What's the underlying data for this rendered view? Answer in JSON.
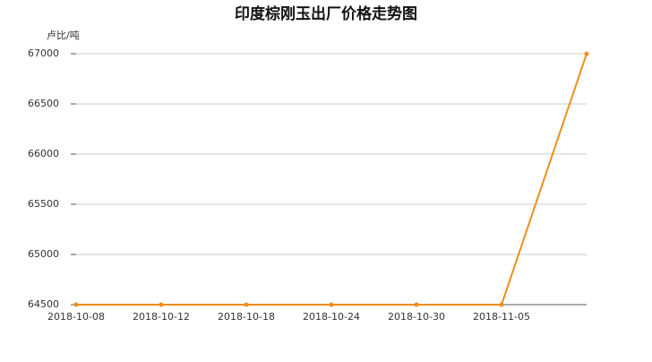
{
  "chart_data": {
    "type": "line",
    "title": "印度棕刚玉出厂价格走势图",
    "y_label": "卢比/吨",
    "categories": [
      "2018-10-08",
      "2018-10-12",
      "2018-10-18",
      "2018-10-24",
      "2018-10-30",
      "2018-11-05",
      null
    ],
    "series": [
      {
        "name": "印度棕刚玉出厂价格",
        "color": "#f08c1e",
        "values": [
          64500,
          64500,
          64500,
          64500,
          64500,
          64500,
          67000
        ]
      }
    ],
    "ylim": [
      64500,
      67000
    ],
    "yticks": [
      64500,
      65000,
      65500,
      66000,
      66500,
      67000
    ],
    "grid": true
  }
}
